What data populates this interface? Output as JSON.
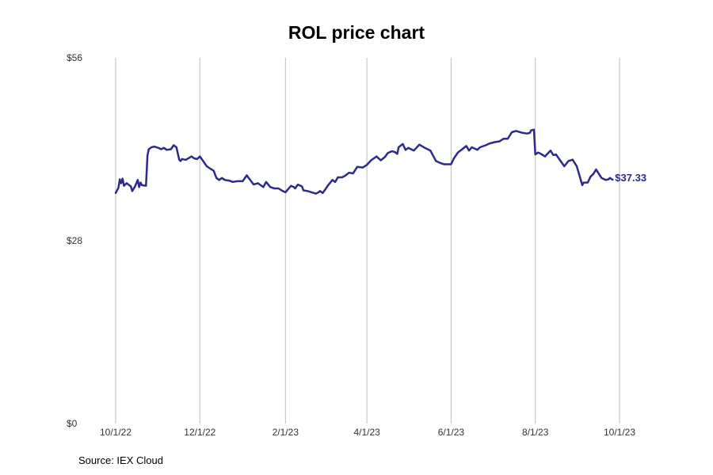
{
  "chart_data": {
    "type": "line",
    "title": "ROL price chart",
    "source": "Source: IEX Cloud",
    "line_color": "#2e2a8c",
    "grid_color": "#bfbfbf",
    "grid": "vertical",
    "ylim": [
      0,
      56
    ],
    "y_ticks": [
      {
        "value": 0,
        "label": "$0"
      },
      {
        "value": 28,
        "label": "$28"
      },
      {
        "value": 56,
        "label": "$56"
      }
    ],
    "xlim": [
      "2022-10-01",
      "2023-10-01"
    ],
    "x_ticks": [
      {
        "date": "2022-10-01",
        "label": "10/1/22"
      },
      {
        "date": "2022-12-01",
        "label": "12/1/22"
      },
      {
        "date": "2023-02-01",
        "label": "2/1/23"
      },
      {
        "date": "2023-04-01",
        "label": "4/1/23"
      },
      {
        "date": "2023-06-01",
        "label": "6/1/23"
      },
      {
        "date": "2023-08-01",
        "label": "8/1/23"
      },
      {
        "date": "2023-10-01",
        "label": "10/1/23"
      }
    ],
    "end_label": "$37.33",
    "series": [
      {
        "x": [
          "2022-10-01",
          "2022-10-03",
          "2022-10-04",
          "2022-10-05",
          "2022-10-06",
          "2022-10-07",
          "2022-10-09",
          "2022-10-12",
          "2022-10-13",
          "2022-10-15",
          "2022-10-17",
          "2022-10-18",
          "2022-10-19",
          "2022-10-20",
          "2022-10-23",
          "2022-10-24",
          "2022-10-25",
          "2022-10-27",
          "2022-10-29",
          "2022-11-01",
          "2022-11-03",
          "2022-11-05",
          "2022-11-07",
          "2022-11-10",
          "2022-11-12",
          "2022-11-14",
          "2022-11-16",
          "2022-11-17",
          "2022-11-18",
          "2022-11-20",
          "2022-11-21",
          "2022-11-25",
          "2022-11-27",
          "2022-11-29",
          "2022-12-01",
          "2022-12-03",
          "2022-12-06",
          "2022-12-08",
          "2022-12-11",
          "2022-12-13",
          "2022-12-15",
          "2022-12-17",
          "2022-12-19",
          "2022-12-22",
          "2022-12-25",
          "2022-12-28",
          "2023-01-01",
          "2023-01-04",
          "2023-01-05",
          "2023-01-09",
          "2023-01-12",
          "2023-01-14",
          "2023-01-16",
          "2023-01-18",
          "2023-01-21",
          "2023-01-24",
          "2023-01-27",
          "2023-01-30",
          "2023-02-01",
          "2023-02-05",
          "2023-02-07",
          "2023-02-08",
          "2023-02-10",
          "2023-02-13",
          "2023-02-14",
          "2023-02-17",
          "2023-02-20",
          "2023-02-23",
          "2023-02-25",
          "2023-02-26",
          "2023-02-28",
          "2023-03-04",
          "2023-03-07",
          "2023-03-09",
          "2023-03-11",
          "2023-03-14",
          "2023-03-16",
          "2023-03-19",
          "2023-03-22",
          "2023-03-25",
          "2023-03-29",
          "2023-04-01",
          "2023-04-04",
          "2023-04-08",
          "2023-04-11",
          "2023-04-14",
          "2023-04-16",
          "2023-04-19",
          "2023-04-21",
          "2023-04-23",
          "2023-04-24",
          "2023-04-27",
          "2023-04-29",
          "2023-05-01",
          "2023-05-03",
          "2023-05-05",
          "2023-05-09",
          "2023-05-13",
          "2023-05-17",
          "2023-05-21",
          "2023-05-24",
          "2023-05-27",
          "2023-05-31",
          "2023-06-01",
          "2023-06-03",
          "2023-06-06",
          "2023-06-09",
          "2023-06-12",
          "2023-06-14",
          "2023-06-16",
          "2023-06-20",
          "2023-06-22",
          "2023-06-26",
          "2023-06-29",
          "2023-07-03",
          "2023-07-06",
          "2023-07-09",
          "2023-07-12",
          "2023-07-15",
          "2023-07-18",
          "2023-07-23",
          "2023-07-26",
          "2023-07-28",
          "2023-07-29",
          "2023-07-31",
          "2023-08-01",
          "2023-08-03",
          "2023-08-05",
          "2023-08-08",
          "2023-08-12",
          "2023-08-14",
          "2023-08-16",
          "2023-08-18",
          "2023-08-20",
          "2023-08-22",
          "2023-08-25",
          "2023-08-28",
          "2023-08-31",
          "2023-09-01",
          "2023-09-04",
          "2023-09-05",
          "2023-09-08",
          "2023-09-10",
          "2023-09-12",
          "2023-09-14",
          "2023-09-18",
          "2023-09-21",
          "2023-09-23",
          "2023-09-24",
          "2023-09-26"
        ],
        "y": [
          35.3,
          36.1,
          37.4,
          36.8,
          37.5,
          36.4,
          36.8,
          36.3,
          35.6,
          36.3,
          37.3,
          36.2,
          36.9,
          36.5,
          36.4,
          41.0,
          42.0,
          42.3,
          42.4,
          42.2,
          42.0,
          42.2,
          41.9,
          42.0,
          42.6,
          42.3,
          40.4,
          40.2,
          40.5,
          40.4,
          40.4,
          40.9,
          40.6,
          40.5,
          40.9,
          40.3,
          39.4,
          39.1,
          38.7,
          37.6,
          37.3,
          37.6,
          37.3,
          37.2,
          37.0,
          37.1,
          37.1,
          38.0,
          37.7,
          36.6,
          36.8,
          36.5,
          36.2,
          37.0,
          36.2,
          36.0,
          36.0,
          35.6,
          35.4,
          36.4,
          36.2,
          36.0,
          36.6,
          36.3,
          35.7,
          35.6,
          35.4,
          35.2,
          35.4,
          35.6,
          35.3,
          36.5,
          37.3,
          37.0,
          37.7,
          37.7,
          37.9,
          38.4,
          38.3,
          39.3,
          39.2,
          39.6,
          40.3,
          40.9,
          40.3,
          40.8,
          41.4,
          41.7,
          41.6,
          41.3,
          42.3,
          42.8,
          41.9,
          42.2,
          42.0,
          41.8,
          42.7,
          42.2,
          41.8,
          40.2,
          39.9,
          39.7,
          39.7,
          39.7,
          40.6,
          41.5,
          42.0,
          42.5,
          41.8,
          42.3,
          41.9,
          42.3,
          42.6,
          42.9,
          43.1,
          43.2,
          43.6,
          43.6,
          44.6,
          44.8,
          44.5,
          44.4,
          44.5,
          44.9,
          45.0,
          41.2,
          41.5,
          41.3,
          40.9,
          41.8,
          41.1,
          41.2,
          40.6,
          40.0,
          39.4,
          40.2,
          40.4,
          39.4,
          38.7,
          36.5,
          36.9,
          36.9,
          37.8,
          38.2,
          38.9,
          37.6,
          37.3,
          37.4,
          37.6,
          37.33
        ]
      }
    ]
  }
}
